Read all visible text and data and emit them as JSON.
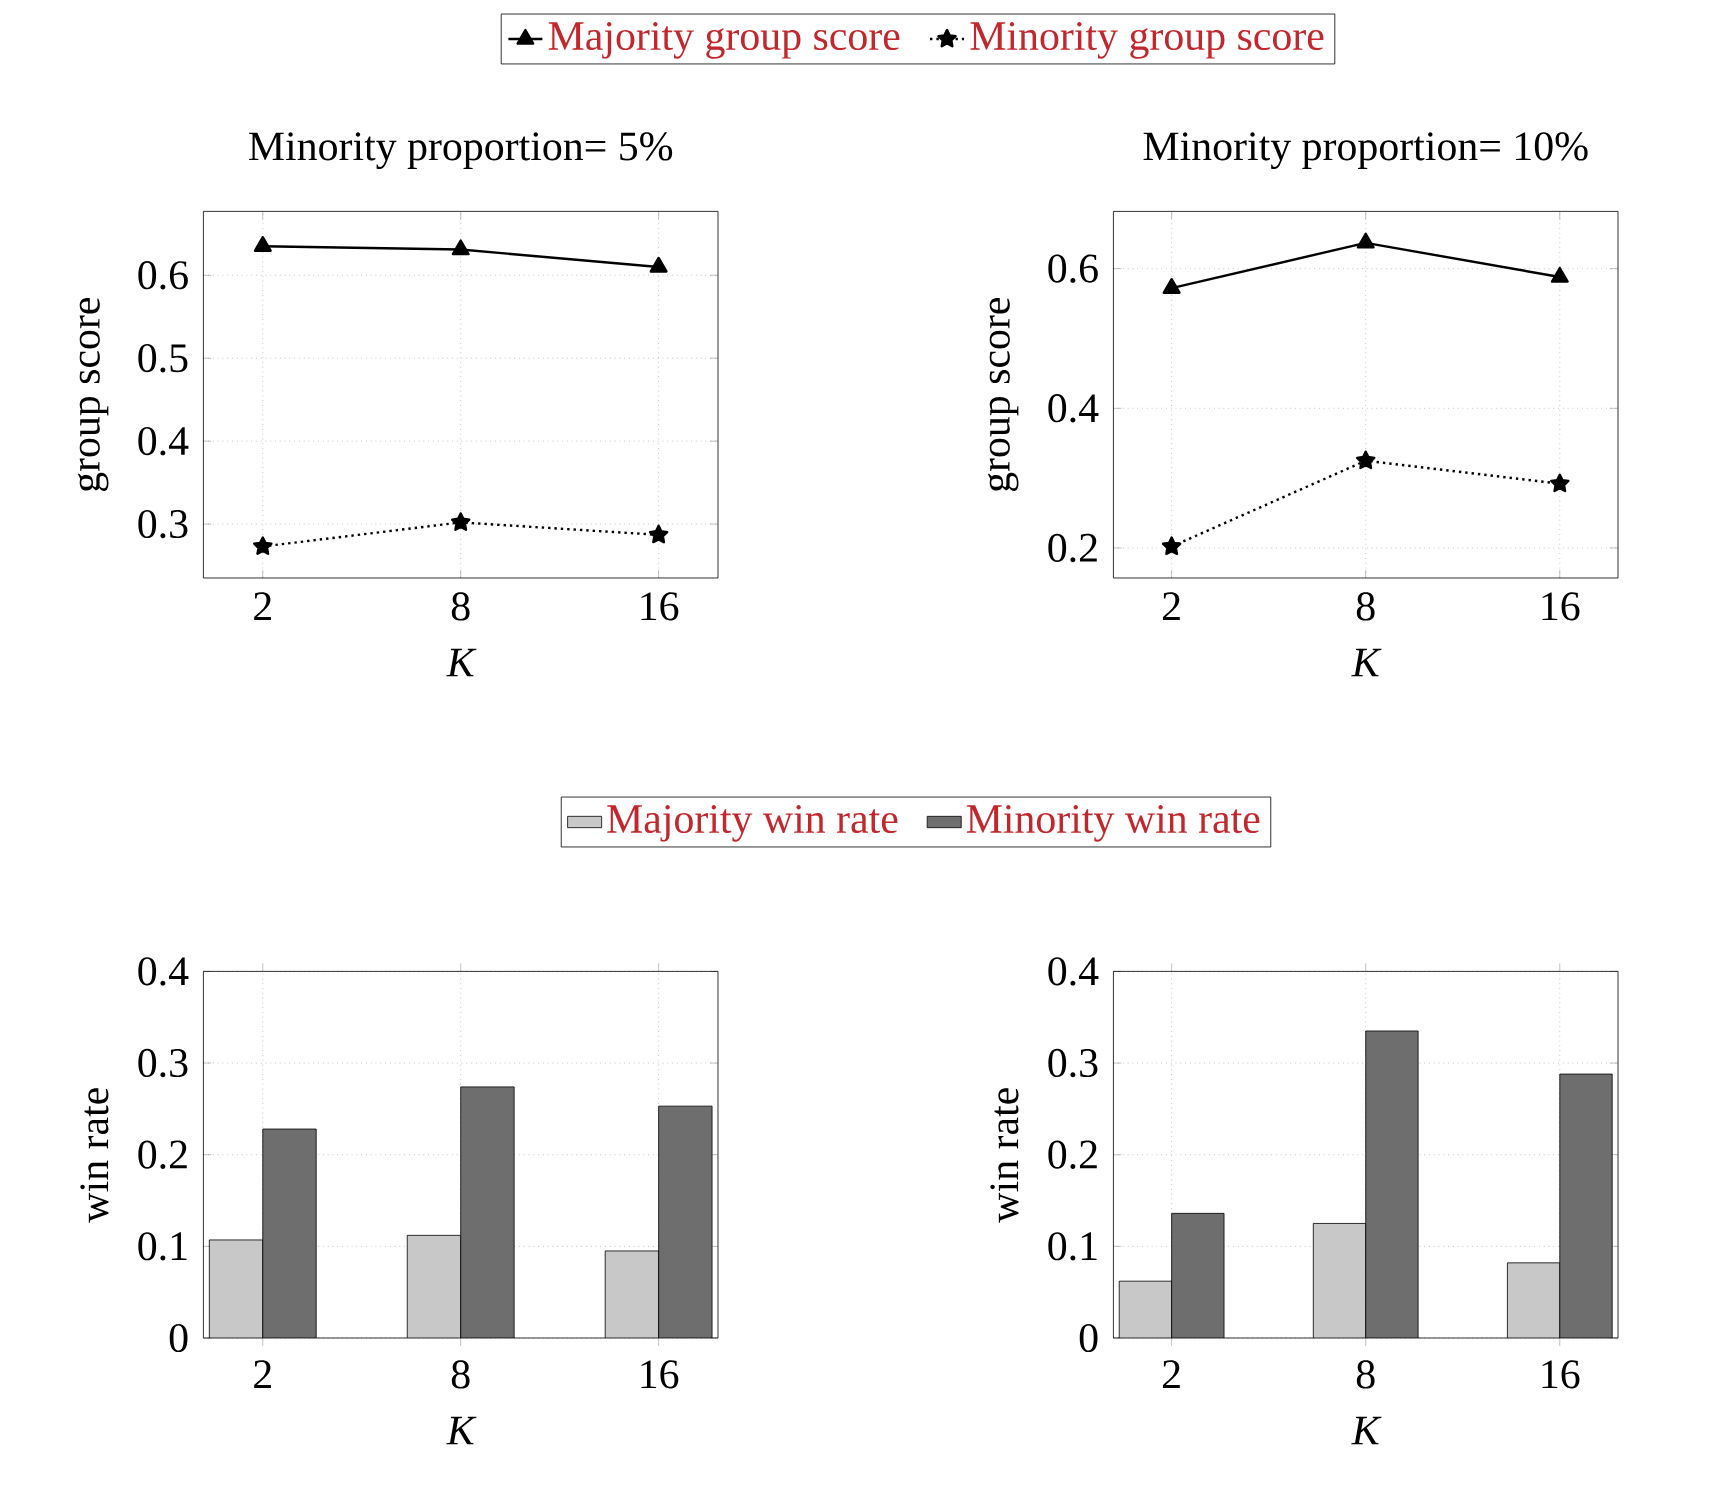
{
  "chart_data": [
    {
      "type": "line",
      "title": "Minority proportion= 5%",
      "xlabel": "K",
      "ylabel": "group score",
      "categories": [
        "2",
        "8",
        "16"
      ],
      "ylim": [
        0.235,
        0.677
      ],
      "yticks": [
        0.3,
        0.4,
        0.5,
        0.6
      ],
      "grid": true,
      "legend": "top",
      "series": [
        {
          "name": "Majority group score",
          "color": "#000000",
          "marker": "triangle",
          "line_style": "solid",
          "values": [
            0.635,
            0.631,
            0.61
          ]
        },
        {
          "name": "Minority group score",
          "color": "#000000",
          "marker": "star",
          "line_style": "dotted",
          "values": [
            0.273,
            0.302,
            0.287
          ]
        }
      ]
    },
    {
      "type": "line",
      "title": "Minority proportion= 10%",
      "xlabel": "K",
      "ylabel": "group score",
      "categories": [
        "2",
        "8",
        "16"
      ],
      "ylim": [
        0.157,
        0.682
      ],
      "yticks": [
        0.2,
        0.4,
        0.6
      ],
      "grid": true,
      "series": [
        {
          "color": "#000000",
          "marker": "triangle",
          "line_style": "solid",
          "values": [
            0.572,
            0.637,
            0.588
          ]
        },
        {
          "color": "#000000",
          "marker": "star",
          "line_style": "dotted",
          "values": [
            0.202,
            0.325,
            0.292
          ]
        }
      ]
    },
    {
      "type": "bar",
      "xlabel": "K",
      "ylabel": "win rate",
      "categories": [
        "2",
        "8",
        "16"
      ],
      "ylim": [
        0,
        0.4
      ],
      "yticks": [
        0,
        0.1,
        0.2,
        0.3,
        0.4
      ],
      "grid": true,
      "legend": "top",
      "series": [
        {
          "name": "Majority win rate",
          "color": "#c8c8c8",
          "values": [
            0.107,
            0.112,
            0.095
          ]
        },
        {
          "name": "Minority win rate",
          "color": "#6e6e6e",
          "values": [
            0.228,
            0.274,
            0.253
          ]
        }
      ]
    },
    {
      "type": "bar",
      "xlabel": "K",
      "ylabel": "win rate",
      "categories": [
        "2",
        "8",
        "16"
      ],
      "ylim": [
        0,
        0.4
      ],
      "yticks": [
        0,
        0.1,
        0.2,
        0.3,
        0.4
      ],
      "grid": true,
      "series": [
        {
          "color": "#c8c8c8",
          "values": [
            0.062,
            0.125,
            0.082
          ]
        },
        {
          "color": "#6e6e6e",
          "values": [
            0.136,
            0.335,
            0.288
          ]
        }
      ]
    }
  ]
}
